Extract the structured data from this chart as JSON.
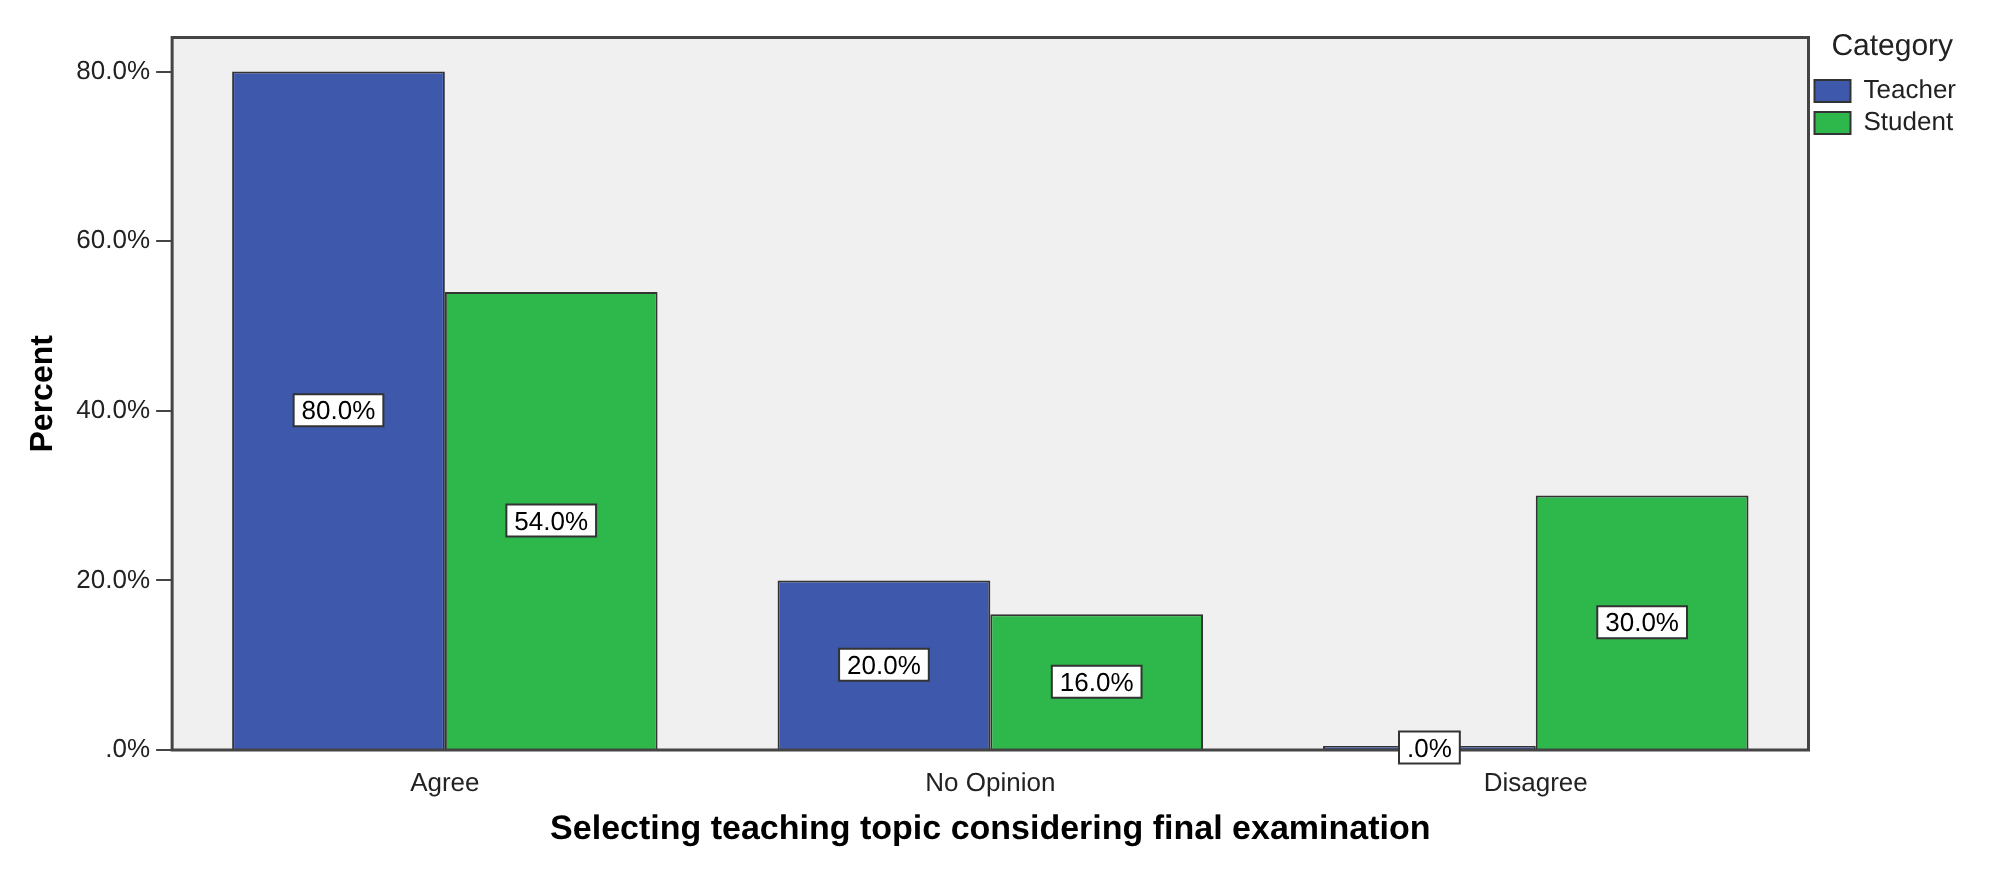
{
  "chart_data": {
    "type": "bar",
    "xlabel": "Selecting teaching topic considering final examination",
    "ylabel": "Percent",
    "legend_title": "Category",
    "legend": "top right",
    "categories": [
      "Agree",
      "No Opinion",
      "Disagree"
    ],
    "series": [
      {
        "name": "Teacher",
        "color": "#3e58ac",
        "values": [
          80,
          20,
          0
        ],
        "value_labels": [
          "80.0%",
          "20.0%",
          ".0%"
        ]
      },
      {
        "name": "Student",
        "color": "#2eb84b",
        "values": [
          54,
          16,
          30
        ],
        "value_labels": [
          "54.0%",
          "16.0%",
          "30.0%"
        ]
      }
    ],
    "ylim": [
      0,
      84
    ],
    "yticks": [
      {
        "value": 0,
        "label": ".0%"
      },
      {
        "value": 20,
        "label": "20.0%"
      },
      {
        "value": 40,
        "label": "40.0%"
      },
      {
        "value": 60,
        "label": "60.0%"
      },
      {
        "value": 80,
        "label": "80.0%"
      }
    ],
    "grid": false
  }
}
